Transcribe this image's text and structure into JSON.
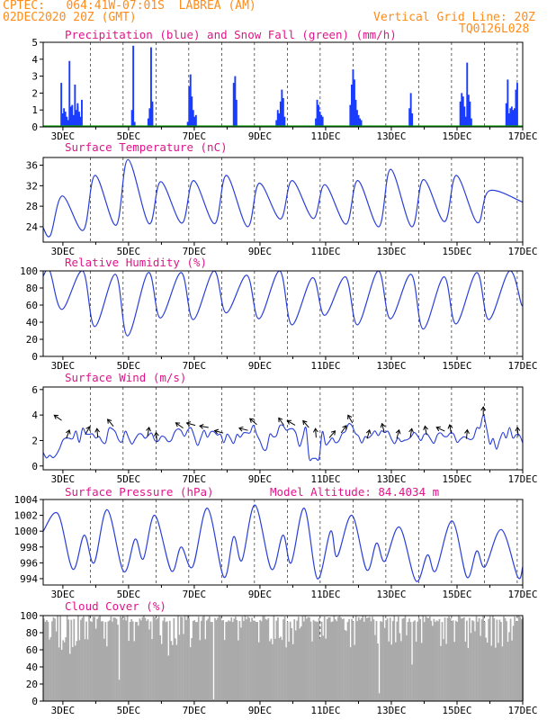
{
  "header": {
    "line1_left": "CPTEC:   064:41W-07:01S  LABREA (AM)",
    "line2_left": "02DEC2020 20Z (GMT)",
    "line2_right": "Vertical Grid Line: 20Z",
    "line3_right": "TQ0126L028"
  },
  "x_ticks": [
    "3DEC",
    "5DEC",
    "7DEC",
    "9DEC",
    "11DEC",
    "13DEC",
    "15DEC",
    "17DEC"
  ],
  "colors": {
    "title": "#e0158a",
    "header": "#ff8c1a",
    "precip": "#1a3cff",
    "snow": "#00a000",
    "line": "#2a3fd8",
    "cloud": "#aaaaaa",
    "arrow": "#000000"
  },
  "chart_data": [
    {
      "type": "bar",
      "id": "precip",
      "title": "Precipitation (blue) and Snow Fall (green) (mm/h)",
      "ylim": [
        0,
        5
      ],
      "yticks": [
        "0",
        "1",
        "2",
        "3",
        "4",
        "5"
      ],
      "series": [
        {
          "name": "Precipitation (blue)",
          "color": "#1a3cff",
          "bursts": [
            {
              "day": 2.95,
              "vals": [
                2.6,
                0.8,
                1.1,
                0.9,
                0.6,
                0.4,
                3.9,
                1.2,
                1.3,
                0.7,
                2.5,
                1.0,
                1.4,
                0.8
              ]
            },
            {
              "day": 3.45,
              "vals": [
                1.2,
                0.9,
                0.6,
                1.6
              ]
            },
            {
              "day": 5.1,
              "vals": [
                1.0,
                4.8,
                0.3
              ]
            },
            {
              "day": 5.6,
              "vals": [
                0.5,
                1.1,
                4.7,
                1.5
              ]
            },
            {
              "day": 6.8,
              "vals": [
                0.3,
                2.4,
                3.1,
                1.8,
                1.0,
                0.6,
                0.7
              ]
            },
            {
              "day": 8.2,
              "vals": [
                2.6,
                3.0,
                1.6
              ]
            },
            {
              "day": 9.5,
              "vals": [
                0.4,
                1.0,
                0.8,
                1.5,
                2.2,
                1.7,
                0.6
              ]
            },
            {
              "day": 10.7,
              "vals": [
                0.5,
                1.6,
                1.3,
                0.9,
                0.7,
                0.6
              ]
            },
            {
              "day": 11.75,
              "vals": [
                1.3,
                2.5,
                3.4,
                2.8,
                1.6,
                1.0,
                0.7,
                0.5,
                0.4
              ]
            },
            {
              "day": 13.55,
              "vals": [
                1.1,
                2.0,
                0.8
              ]
            },
            {
              "day": 15.1,
              "vals": [
                1.5,
                2.0,
                1.8,
                1.2,
                0.6,
                3.8,
                1.9,
                1.5,
                0.5
              ]
            },
            {
              "day": 16.5,
              "vals": [
                1.4,
                2.8,
                0.8,
                1.1,
                1.2,
                1.0,
                1.1,
                2.2,
                2.6
              ]
            }
          ]
        },
        {
          "name": "Snow Fall (green)",
          "color": "#00a000",
          "constant": 0
        }
      ],
      "xlim": [
        2.4,
        17.0
      ]
    },
    {
      "type": "line",
      "id": "temp",
      "title": "Surface Temperature (nC)",
      "ylim": [
        21,
        37.5
      ],
      "yticks_values": [
        24,
        28,
        32,
        36
      ],
      "yticks": [
        "24",
        "28",
        "32",
        "36"
      ],
      "diurnal": {
        "minimum": [
          22.3,
          23.3,
          24.3,
          24.6,
          24.7,
          24.6,
          24.0,
          25.5,
          25.6,
          24.5,
          24.0,
          24.0,
          25.0,
          24.8
        ],
        "maximum": [
          30.0,
          34.0,
          37.1,
          32.8,
          33.0,
          34.0,
          32.5,
          33.0,
          32.2,
          33.0,
          35.2,
          33.2,
          34.0,
          31.0
        ]
      },
      "xlim": [
        2.4,
        17.0
      ]
    },
    {
      "type": "line",
      "id": "rh",
      "title": "Relative Humidity (%)",
      "ylim": [
        0,
        100
      ],
      "yticks_values": [
        0,
        20,
        40,
        60,
        80,
        100
      ],
      "yticks": [
        "0",
        "20",
        "40",
        "60",
        "80",
        "100"
      ],
      "diurnal": {
        "maximum": [
          100,
          100,
          96,
          98,
          98,
          100,
          95,
          100,
          92,
          93,
          100,
          96,
          93,
          98,
          100
        ],
        "minimum": [
          55,
          35,
          24,
          45,
          43,
          51,
          44,
          37,
          48,
          37,
          44,
          32,
          38,
          43,
          60
        ]
      },
      "xlim": [
        2.4,
        17.0
      ]
    },
    {
      "type": "line",
      "id": "wind",
      "title": "Surface Wind (m/s)",
      "ylim": [
        -0.3,
        6.2
      ],
      "yticks_values": [
        0,
        2,
        4,
        6
      ],
      "yticks": [
        "0",
        "2",
        "4",
        "6"
      ],
      "arrows": [
        {
          "day": 2.85,
          "speed": 3.5,
          "dir": 125
        },
        {
          "day": 3.15,
          "speed": 2.2,
          "dir": 200
        },
        {
          "day": 3.75,
          "speed": 2.5,
          "dir": 210
        },
        {
          "day": 4.05,
          "speed": 2.3,
          "dir": 175
        },
        {
          "day": 4.45,
          "speed": 3.1,
          "dir": 140
        },
        {
          "day": 5.6,
          "speed": 2.4,
          "dir": 190
        },
        {
          "day": 5.85,
          "speed": 2.0,
          "dir": 175
        },
        {
          "day": 6.55,
          "speed": 2.9,
          "dir": 125
        },
        {
          "day": 6.9,
          "speed": 3.0,
          "dir": 105
        },
        {
          "day": 7.3,
          "speed": 2.8,
          "dir": 100
        },
        {
          "day": 7.75,
          "speed": 2.4,
          "dir": 105
        },
        {
          "day": 8.5,
          "speed": 2.6,
          "dir": 105
        },
        {
          "day": 8.8,
          "speed": 3.2,
          "dir": 130
        },
        {
          "day": 9.65,
          "speed": 3.2,
          "dir": 145
        },
        {
          "day": 9.95,
          "speed": 3.1,
          "dir": 120
        },
        {
          "day": 10.4,
          "speed": 3.0,
          "dir": 140
        },
        {
          "day": 10.7,
          "speed": 2.3,
          "dir": 175
        },
        {
          "day": 11.2,
          "speed": 2.2,
          "dir": 220
        },
        {
          "day": 11.55,
          "speed": 2.6,
          "dir": 215
        },
        {
          "day": 11.75,
          "speed": 3.4,
          "dir": 150
        },
        {
          "day": 12.3,
          "speed": 2.2,
          "dir": 195
        },
        {
          "day": 12.75,
          "speed": 2.7,
          "dir": 165
        },
        {
          "day": 13.2,
          "speed": 2.2,
          "dir": 195
        },
        {
          "day": 13.6,
          "speed": 2.3,
          "dir": 190
        },
        {
          "day": 14.05,
          "speed": 2.5,
          "dir": 170
        },
        {
          "day": 14.5,
          "speed": 2.6,
          "dir": 115
        },
        {
          "day": 14.8,
          "speed": 2.6,
          "dir": 170
        },
        {
          "day": 15.3,
          "speed": 2.2,
          "dir": 185
        },
        {
          "day": 15.8,
          "speed": 4.0,
          "dir": 180
        },
        {
          "day": 16.85,
          "speed": 2.4,
          "dir": 175
        }
      ],
      "xlim": [
        2.4,
        17.0
      ]
    },
    {
      "type": "line",
      "id": "pres",
      "title": "Surface Pressure (hPa)",
      "annotation": "Model Altitude: 84.4034 m",
      "ylim": [
        993.2,
        1004
      ],
      "yticks_values": [
        994,
        996,
        998,
        1000,
        1002,
        1004
      ],
      "yticks": [
        "994",
        "996",
        "998",
        "1000",
        "1002",
        "1004"
      ],
      "extremes": [
        {
          "day": 2.4,
          "hPa": 1000.0
        },
        {
          "day": 2.85,
          "hPa": 1002.2
        },
        {
          "day": 3.3,
          "hPa": 995.2
        },
        {
          "day": 3.65,
          "hPa": 999.5
        },
        {
          "day": 3.95,
          "hPa": 996.0
        },
        {
          "day": 4.35,
          "hPa": 1002.7
        },
        {
          "day": 4.85,
          "hPa": 994.9
        },
        {
          "day": 5.2,
          "hPa": 999.0
        },
        {
          "day": 5.45,
          "hPa": 996.5
        },
        {
          "day": 5.8,
          "hPa": 1002.0
        },
        {
          "day": 6.3,
          "hPa": 995.0
        },
        {
          "day": 6.6,
          "hPa": 998.0
        },
        {
          "day": 6.95,
          "hPa": 995.5
        },
        {
          "day": 7.4,
          "hPa": 1002.9
        },
        {
          "day": 7.9,
          "hPa": 994.2
        },
        {
          "day": 8.2,
          "hPa": 999.3
        },
        {
          "day": 8.45,
          "hPa": 996.3
        },
        {
          "day": 8.85,
          "hPa": 1003.3
        },
        {
          "day": 9.35,
          "hPa": 995.2
        },
        {
          "day": 9.7,
          "hPa": 999.5
        },
        {
          "day": 9.95,
          "hPa": 996.0
        },
        {
          "day": 10.35,
          "hPa": 1002.9
        },
        {
          "day": 10.75,
          "hPa": 994.0
        },
        {
          "day": 11.15,
          "hPa": 1000.0
        },
        {
          "day": 11.35,
          "hPa": 996.8
        },
        {
          "day": 11.8,
          "hPa": 1002.0
        },
        {
          "day": 12.25,
          "hPa": 995.1
        },
        {
          "day": 12.55,
          "hPa": 998.5
        },
        {
          "day": 12.8,
          "hPa": 996.2
        },
        {
          "day": 13.25,
          "hPa": 1000.5
        },
        {
          "day": 13.75,
          "hPa": 993.7
        },
        {
          "day": 14.1,
          "hPa": 997.0
        },
        {
          "day": 14.35,
          "hPa": 995.0
        },
        {
          "day": 14.85,
          "hPa": 1001.3
        },
        {
          "day": 15.3,
          "hPa": 994.2
        },
        {
          "day": 15.6,
          "hPa": 997.5
        },
        {
          "day": 15.85,
          "hPa": 995.5
        },
        {
          "day": 16.35,
          "hPa": 1000.2
        },
        {
          "day": 16.85,
          "hPa": 994.2
        },
        {
          "day": 17.0,
          "hPa": 995.5
        }
      ],
      "xlim": [
        2.4,
        17.0
      ]
    },
    {
      "type": "area",
      "id": "cloud",
      "title": "Cloud Cover (%)",
      "ylim": [
        0,
        100
      ],
      "yticks_values": [
        0,
        20,
        40,
        60,
        80,
        100
      ],
      "yticks": [
        "0",
        "20",
        "40",
        "60",
        "80",
        "100"
      ],
      "typical_percent": 96,
      "dips": [
        {
          "day": 2.55,
          "percent": 72
        },
        {
          "day": 2.95,
          "percent": 60
        },
        {
          "day": 3.2,
          "percent": 76
        },
        {
          "day": 4.7,
          "percent": 25
        },
        {
          "day": 5.15,
          "percent": 70
        },
        {
          "day": 6.2,
          "percent": 80
        },
        {
          "day": 7.55,
          "percent": 2
        },
        {
          "day": 8.4,
          "percent": 86
        },
        {
          "day": 10.2,
          "percent": 85
        },
        {
          "day": 11.6,
          "percent": 82
        },
        {
          "day": 12.6,
          "percent": 28
        },
        {
          "day": 13.6,
          "percent": 72
        },
        {
          "day": 15.3,
          "percent": 62
        },
        {
          "day": 16.7,
          "percent": 88
        }
      ],
      "xlim": [
        2.4,
        17.0
      ]
    }
  ]
}
